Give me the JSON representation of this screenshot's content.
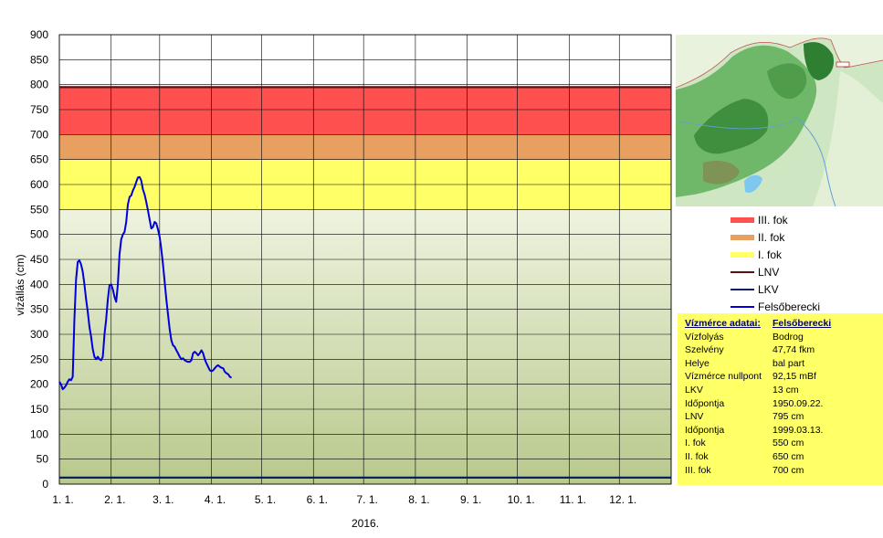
{
  "chart_data": {
    "type": "line",
    "title": "",
    "xlabel": "2016.",
    "ylabel": "vízállás (cm)",
    "ylim": [
      0,
      900
    ],
    "yticks": [
      0,
      50,
      100,
      150,
      200,
      250,
      300,
      350,
      400,
      450,
      500,
      550,
      600,
      650,
      700,
      750,
      800,
      850,
      900
    ],
    "xlim": [
      0,
      366
    ],
    "xticks": [
      {
        "label": "1. 1.",
        "day": 0
      },
      {
        "label": "2. 1.",
        "day": 31
      },
      {
        "label": "3. 1.",
        "day": 60
      },
      {
        "label": "4. 1.",
        "day": 91
      },
      {
        "label": "5. 1.",
        "day": 121
      },
      {
        "label": "6. 1.",
        "day": 152
      },
      {
        "label": "7. 1.",
        "day": 182
      },
      {
        "label": "8. 1.",
        "day": 213
      },
      {
        "label": "9. 1.",
        "day": 244
      },
      {
        "label": "10. 1.",
        "day": 274
      },
      {
        "label": "11. 1.",
        "day": 305
      },
      {
        "label": "12. 1.",
        "day": 335
      }
    ],
    "grid": true,
    "legend_position": "right",
    "bands": [
      {
        "name": "III. fok",
        "from": 700,
        "to": 795,
        "color": "#ff5050"
      },
      {
        "name": "II. fok",
        "from": 650,
        "to": 700,
        "color": "#e8a060"
      },
      {
        "name": "I. fok",
        "from": 550,
        "to": 650,
        "color": "#ffff66"
      }
    ],
    "lines": [
      {
        "name": "LNV",
        "value": 795,
        "color": "#5a1010"
      },
      {
        "name": "LKV",
        "value": 13,
        "color": "#0a2060"
      }
    ],
    "series": [
      {
        "name": "Felsőberecki",
        "color": "#0000dd",
        "points": [
          [
            0,
            205
          ],
          [
            1,
            200
          ],
          [
            2,
            190
          ],
          [
            3,
            193
          ],
          [
            4,
            198
          ],
          [
            5,
            205
          ],
          [
            6,
            210
          ],
          [
            7,
            208
          ],
          [
            8,
            215
          ],
          [
            9,
            330
          ],
          [
            10,
            410
          ],
          [
            11,
            445
          ],
          [
            12,
            448
          ],
          [
            13,
            440
          ],
          [
            14,
            425
          ],
          [
            15,
            400
          ],
          [
            16,
            370
          ],
          [
            17,
            345
          ],
          [
            18,
            315
          ],
          [
            19,
            295
          ],
          [
            20,
            270
          ],
          [
            21,
            255
          ],
          [
            22,
            250
          ],
          [
            23,
            255
          ],
          [
            24,
            250
          ],
          [
            25,
            248
          ],
          [
            26,
            255
          ],
          [
            27,
            300
          ],
          [
            28,
            330
          ],
          [
            29,
            370
          ],
          [
            30,
            398
          ],
          [
            31,
            400
          ],
          [
            32,
            390
          ],
          [
            33,
            375
          ],
          [
            34,
            365
          ],
          [
            35,
            400
          ],
          [
            36,
            460
          ],
          [
            37,
            490
          ],
          [
            38,
            500
          ],
          [
            39,
            505
          ],
          [
            40,
            525
          ],
          [
            41,
            560
          ],
          [
            42,
            575
          ],
          [
            43,
            578
          ],
          [
            44,
            588
          ],
          [
            45,
            595
          ],
          [
            46,
            605
          ],
          [
            47,
            614
          ],
          [
            48,
            615
          ],
          [
            49,
            608
          ],
          [
            50,
            590
          ],
          [
            51,
            580
          ],
          [
            52,
            565
          ],
          [
            53,
            548
          ],
          [
            54,
            530
          ],
          [
            55,
            512
          ],
          [
            56,
            515
          ],
          [
            57,
            525
          ],
          [
            58,
            522
          ],
          [
            59,
            510
          ],
          [
            60,
            495
          ],
          [
            61,
            470
          ],
          [
            62,
            440
          ],
          [
            63,
            405
          ],
          [
            64,
            370
          ],
          [
            65,
            340
          ],
          [
            66,
            310
          ],
          [
            67,
            288
          ],
          [
            68,
            278
          ],
          [
            69,
            275
          ],
          [
            70,
            268
          ],
          [
            71,
            262
          ],
          [
            72,
            255
          ],
          [
            73,
            250
          ],
          [
            74,
            252
          ],
          [
            75,
            248
          ],
          [
            76,
            246
          ],
          [
            77,
            245
          ],
          [
            78,
            245
          ],
          [
            79,
            248
          ],
          [
            80,
            262
          ],
          [
            81,
            265
          ],
          [
            82,
            262
          ],
          [
            83,
            258
          ],
          [
            84,
            262
          ],
          [
            85,
            268
          ],
          [
            86,
            262
          ],
          [
            87,
            250
          ],
          [
            88,
            242
          ],
          [
            89,
            235
          ],
          [
            90,
            228
          ],
          [
            91,
            226
          ],
          [
            92,
            228
          ],
          [
            93,
            232
          ],
          [
            94,
            236
          ],
          [
            95,
            238
          ],
          [
            96,
            235
          ],
          [
            97,
            233
          ],
          [
            98,
            232
          ],
          [
            99,
            225
          ],
          [
            100,
            222
          ],
          [
            101,
            220
          ],
          [
            102,
            215
          ],
          [
            103,
            213
          ]
        ]
      }
    ]
  },
  "legend": {
    "items": [
      {
        "label": "III. fok",
        "kind": "band",
        "color": "#ff5050"
      },
      {
        "label": "II. fok",
        "kind": "band",
        "color": "#e8a060"
      },
      {
        "label": "I. fok",
        "kind": "band",
        "color": "#ffff66"
      },
      {
        "label": "LNV",
        "kind": "line",
        "color": "#5a1010"
      },
      {
        "label": "LKV",
        "kind": "line",
        "color": "#0a2060"
      },
      {
        "label": "Felsőberecki",
        "kind": "line",
        "color": "#0000dd"
      }
    ]
  },
  "station": {
    "header_key": "Vízmérce adatai:",
    "header_val": "Felsőberecki",
    "rows": [
      {
        "key": "Vízfolyás",
        "val": "Bodrog"
      },
      {
        "key": "Szelvény",
        "val": "47,74 fkm"
      },
      {
        "key": "Helye",
        "val": "bal part"
      },
      {
        "key": "Vízmérce nullpont",
        "val": "92,15 mBf"
      },
      {
        "key": "LKV",
        "val": "13 cm"
      },
      {
        "key": "Időpontja",
        "val": "1950.09.22."
      },
      {
        "key": "LNV",
        "val": "795 cm"
      },
      {
        "key": "Időpontja",
        "val": "1999.03.13."
      },
      {
        "key": "I. fok",
        "val": "550 cm"
      },
      {
        "key": "II. fok",
        "val": "650 cm"
      },
      {
        "key": "III. fok",
        "val": "700 cm"
      }
    ]
  }
}
